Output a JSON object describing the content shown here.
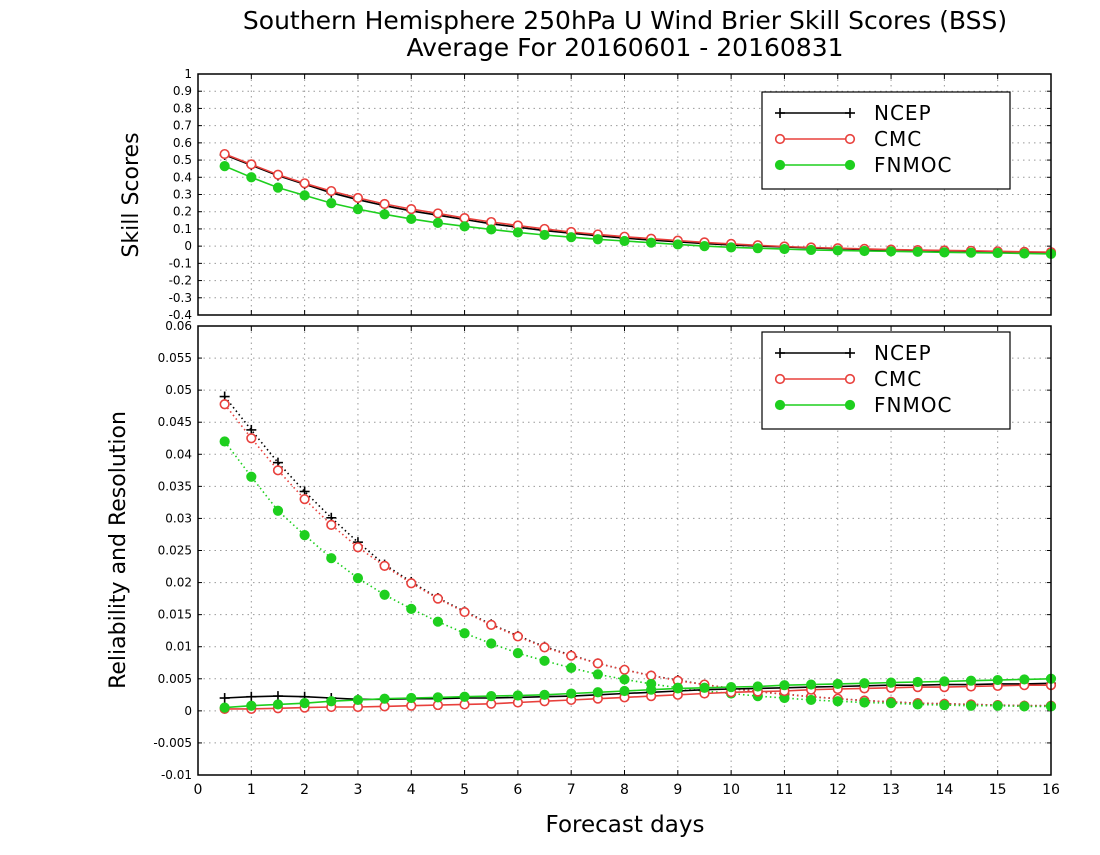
{
  "titles": {
    "line1": "Southern Hemisphere 250hPa U Wind Brier Skill Scores (BSS)",
    "line2": "Average For 20160601 - 20160831"
  },
  "colors": {
    "NCEP": "#000000",
    "CMC": "#e8403c",
    "FNMOC": "#1ecf1e",
    "grid": "#9a9a9a"
  },
  "chart_data": [
    {
      "type": "line",
      "ylabel": "Skill Scores",
      "xlabel": "",
      "xlim": [
        0,
        16
      ],
      "ylim": [
        -0.4,
        1
      ],
      "x_ticks": [
        "0",
        "1",
        "2",
        "3",
        "4",
        "5",
        "6",
        "7",
        "8",
        "9",
        "10",
        "11",
        "12",
        "13",
        "14",
        "15",
        "16"
      ],
      "y_ticks": [
        "-0.4",
        "-0.3",
        "-0.2",
        "-0.1",
        "0",
        "0.1",
        "0.2",
        "0.3",
        "0.4",
        "0.5",
        "0.6",
        "0.7",
        "0.8",
        "0.9",
        "1"
      ],
      "grid": true,
      "legend_position": "top-right",
      "x": [
        0.5,
        1,
        1.5,
        2,
        2.5,
        3,
        3.5,
        4,
        4.5,
        5,
        5.5,
        6,
        6.5,
        7,
        7.5,
        8,
        8.5,
        9,
        9.5,
        10,
        10.5,
        11,
        11.5,
        12,
        12.5,
        13,
        13.5,
        14,
        14.5,
        15,
        15.5,
        16
      ],
      "series": [
        {
          "name": "NCEP",
          "marker": "plus",
          "style": "solid",
          "values": [
            0.53,
            0.47,
            0.41,
            0.36,
            0.31,
            0.27,
            0.235,
            0.205,
            0.18,
            0.155,
            0.13,
            0.11,
            0.09,
            0.075,
            0.06,
            0.047,
            0.035,
            0.025,
            0.015,
            0.007,
            0.0,
            -0.005,
            -0.01,
            -0.015,
            -0.02,
            -0.022,
            -0.025,
            -0.027,
            -0.03,
            -0.032,
            -0.035,
            -0.038
          ]
        },
        {
          "name": "CMC",
          "marker": "open-circle",
          "style": "solid",
          "values": [
            0.535,
            0.475,
            0.415,
            0.365,
            0.32,
            0.28,
            0.245,
            0.215,
            0.19,
            0.163,
            0.14,
            0.12,
            0.1,
            0.082,
            0.068,
            0.055,
            0.043,
            0.032,
            0.022,
            0.013,
            0.005,
            -0.002,
            -0.008,
            -0.012,
            -0.016,
            -0.02,
            -0.023,
            -0.025,
            -0.027,
            -0.03,
            -0.033,
            -0.035
          ]
        },
        {
          "name": "FNMOC",
          "marker": "filled-circle",
          "style": "solid",
          "values": [
            0.465,
            0.4,
            0.34,
            0.295,
            0.25,
            0.215,
            0.185,
            0.158,
            0.135,
            0.115,
            0.097,
            0.08,
            0.065,
            0.052,
            0.04,
            0.03,
            0.02,
            0.01,
            0.0,
            -0.007,
            -0.012,
            -0.017,
            -0.022,
            -0.025,
            -0.028,
            -0.03,
            -0.033,
            -0.036,
            -0.038,
            -0.04,
            -0.043,
            -0.045
          ]
        }
      ]
    },
    {
      "type": "line",
      "ylabel": "Reliability and Resolution",
      "xlabel": "Forecast days",
      "xlim": [
        0,
        16
      ],
      "ylim": [
        -0.01,
        0.06
      ],
      "x_ticks": [
        "0",
        "1",
        "2",
        "3",
        "4",
        "5",
        "6",
        "7",
        "8",
        "9",
        "10",
        "11",
        "12",
        "13",
        "14",
        "15",
        "16"
      ],
      "y_ticks": [
        "-0.01",
        "-0.005",
        "0",
        "0.005",
        "0.01",
        "0.015",
        "0.02",
        "0.025",
        "0.03",
        "0.035",
        "0.04",
        "0.045",
        "0.05",
        "0.055",
        "0.06"
      ],
      "grid": true,
      "legend_position": "top-right",
      "x": [
        0.5,
        1,
        1.5,
        2,
        2.5,
        3,
        3.5,
        4,
        4.5,
        5,
        5.5,
        6,
        6.5,
        7,
        7.5,
        8,
        8.5,
        9,
        9.5,
        10,
        10.5,
        11,
        11.5,
        12,
        12.5,
        13,
        13.5,
        14,
        14.5,
        15,
        15.5,
        16
      ],
      "series": [
        {
          "name": "NCEP",
          "group": "Resolution",
          "marker": "plus",
          "style": "dotted",
          "values": [
            0.049,
            0.0438,
            0.0387,
            0.0342,
            0.0301,
            0.0263,
            0.0228,
            0.0201,
            0.0176,
            0.0155,
            0.0135,
            0.0117,
            0.01,
            0.0087,
            0.0074,
            0.0064,
            0.0055,
            0.0048,
            0.0041,
            0.0035,
            0.003,
            0.0026,
            0.0022,
            0.0019,
            0.0016,
            0.0014,
            0.0012,
            0.0011,
            0.001,
            0.0009,
            0.0008,
            0.0008
          ]
        },
        {
          "name": "CMC",
          "group": "Resolution",
          "marker": "open-circle",
          "style": "dotted",
          "values": [
            0.0478,
            0.0425,
            0.0375,
            0.033,
            0.029,
            0.0255,
            0.0226,
            0.0199,
            0.0175,
            0.0154,
            0.0134,
            0.0116,
            0.0099,
            0.0086,
            0.0074,
            0.0064,
            0.0055,
            0.0047,
            0.0041,
            0.0035,
            0.003,
            0.0026,
            0.0022,
            0.0019,
            0.0016,
            0.0014,
            0.0012,
            0.0011,
            0.001,
            0.0009,
            0.0008,
            0.0008
          ]
        },
        {
          "name": "FNMOC",
          "group": "Resolution",
          "marker": "filled-circle",
          "style": "dotted",
          "values": [
            0.042,
            0.0365,
            0.0312,
            0.0274,
            0.0238,
            0.0207,
            0.0181,
            0.0159,
            0.0139,
            0.0121,
            0.0105,
            0.009,
            0.0078,
            0.0067,
            0.0057,
            0.0049,
            0.0042,
            0.0036,
            0.0031,
            0.0027,
            0.0023,
            0.002,
            0.0017,
            0.0015,
            0.0013,
            0.0012,
            0.001,
            0.0009,
            0.0008,
            0.0008,
            0.0007,
            0.0007
          ]
        },
        {
          "name": "NCEP",
          "group": "Reliability",
          "marker": "plus",
          "style": "solid",
          "values": [
            0.002,
            0.0022,
            0.0023,
            0.0022,
            0.002,
            0.0018,
            0.0018,
            0.0019,
            0.0019,
            0.002,
            0.002,
            0.0021,
            0.0022,
            0.0023,
            0.0025,
            0.0027,
            0.0029,
            0.0031,
            0.0033,
            0.0034,
            0.0035,
            0.0036,
            0.0037,
            0.0038,
            0.0039,
            0.004,
            0.004,
            0.0041,
            0.0041,
            0.0042,
            0.0042,
            0.0043
          ]
        },
        {
          "name": "CMC",
          "group": "Reliability",
          "marker": "open-circle",
          "style": "solid",
          "values": [
            0.0003,
            0.0003,
            0.0004,
            0.0005,
            0.0006,
            0.0006,
            0.0007,
            0.0008,
            0.0009,
            0.001,
            0.0011,
            0.0013,
            0.0015,
            0.0017,
            0.0019,
            0.0021,
            0.0023,
            0.0025,
            0.0027,
            0.0029,
            0.003,
            0.0031,
            0.0033,
            0.0034,
            0.0035,
            0.0036,
            0.0037,
            0.0037,
            0.0038,
            0.0039,
            0.004,
            0.004
          ]
        },
        {
          "name": "FNMOC",
          "group": "Reliability",
          "marker": "filled-circle",
          "style": "solid",
          "values": [
            0.0005,
            0.0008,
            0.001,
            0.0012,
            0.0015,
            0.0017,
            0.0019,
            0.002,
            0.0021,
            0.0022,
            0.0023,
            0.0024,
            0.0025,
            0.0027,
            0.0029,
            0.0031,
            0.0033,
            0.0035,
            0.0036,
            0.0037,
            0.0038,
            0.004,
            0.0041,
            0.0042,
            0.0043,
            0.0044,
            0.0045,
            0.0046,
            0.0047,
            0.0048,
            0.0049,
            0.005
          ]
        }
      ]
    }
  ]
}
